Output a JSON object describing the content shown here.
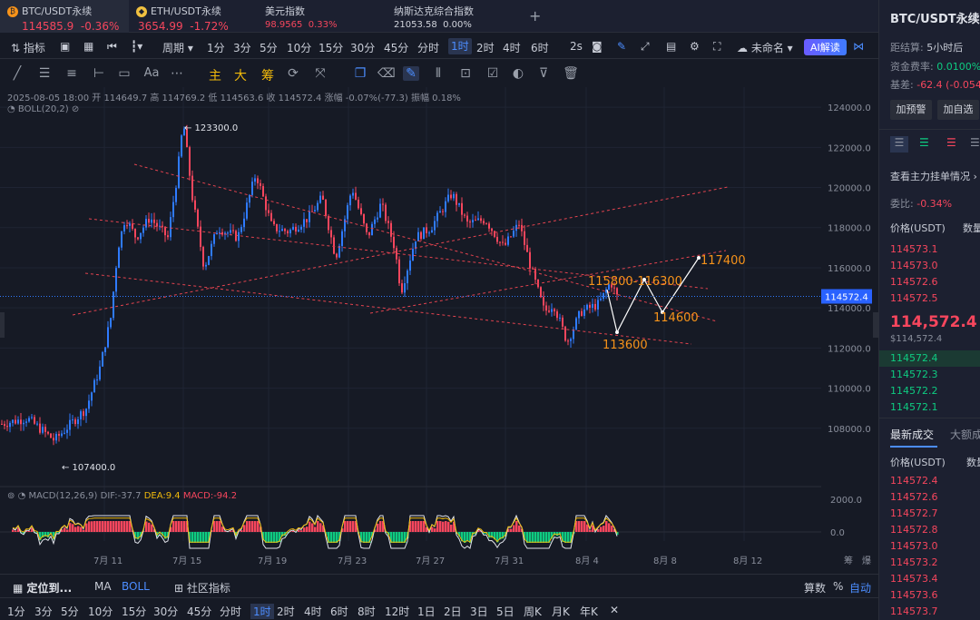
{
  "tabs": [
    {
      "name": "BTC/USDT永续",
      "price": "114585.9",
      "change": "-0.36%",
      "icon": "₿",
      "color": "#f7931a"
    },
    {
      "name": "ETH/USDT永续",
      "price": "3654.99",
      "change": "-1.72%",
      "icon": "◆",
      "color": "#f0c040"
    },
    {
      "name": "美元指数",
      "price": "98.9565",
      "change": "0.33%"
    },
    {
      "name": "纳斯达克综合指数",
      "price": "21053.58",
      "change": "0.00%"
    }
  ],
  "toolbar1": {
    "indicators": "指标",
    "period": "周期",
    "intervals": [
      "1分",
      "3分",
      "5分",
      "10分",
      "15分",
      "30分",
      "45分",
      "分时",
      "1时",
      "2时",
      "4时",
      "6时"
    ],
    "selected": "1时",
    "countdown": "2s",
    "unnamed": "未命名",
    "ai": "AI解读"
  },
  "toolbar2": {
    "zhu": "主",
    "da": "大",
    "chou": "筹"
  },
  "ohlc": "2025-08-05 18:00  开 114649.7  高 114769.2  低 114563.6  收 114572.4  涨幅 -0.07%(-77.3)  振幅 0.18%",
  "boll": "BOLL(20,2)",
  "macd": {
    "label": "MACD(12,26,9)",
    "dif": "DIF:-37.7",
    "dea": "DEA:9.4",
    "macd": "MACD:-94.2"
  },
  "price_axis": [
    "124000.0",
    "122000.0",
    "120000.0",
    "118000.0",
    "116000.0",
    "114000.0",
    "112000.0",
    "110000.0",
    "108000.0"
  ],
  "current_price": "114572.4",
  "macd_axis": [
    "2000.0",
    "0.0"
  ],
  "date_axis": [
    "7月 11",
    "7月 15",
    "7月 19",
    "7月 23",
    "7月 27",
    "7月 31",
    "8月 4",
    "8月 8",
    "8月 12"
  ],
  "axis_right_labels": [
    "筹",
    "爆"
  ],
  "annotations": {
    "high": "123300.0",
    "low": "107400.0",
    "t1": "115800-116300",
    "t2": "117400",
    "t3": "114600",
    "t4": "113600"
  },
  "chart_data": {
    "type": "candlestick",
    "title": "BTC/USDT永续 1时",
    "ylim": [
      106000,
      125000
    ],
    "x": [
      "7月 11",
      "7月 15",
      "7月 19",
      "7月 23",
      "7月 27",
      "7月 31",
      "8月 4"
    ],
    "marked_high": 123300,
    "marked_low": 107400,
    "last_close": 114572.4,
    "targets": [
      113600,
      115800,
      116300,
      114600,
      117400
    ]
  },
  "right": {
    "title": "BTC/USDT永续",
    "settle_label": "距结算:",
    "settle": "5小时后",
    "funding_label": "资金费率:",
    "funding": "0.0100%",
    "basis_label": "基差:",
    "basis": "-62.4 (-0.054",
    "btn_alert": "加预警",
    "btn_fav": "加自选",
    "depth_link": "查看主力挂单情况",
    "ratio_label": "委比:",
    "ratio": "-0.34%",
    "col_price": "价格(USDT)",
    "col_qty": "数量",
    "asks": [
      "114573.1",
      "114573.0",
      "114572.6",
      "114572.5"
    ],
    "mid": "114,572.4",
    "mid_sub": "$114,572.4",
    "bids": [
      "114572.4",
      "114572.3",
      "114572.2",
      "114572.1"
    ],
    "trades_tab": "最新成交",
    "trades_tab2": "大额成",
    "trades": [
      "114572.4",
      "114572.6",
      "114572.7",
      "114572.8",
      "114573.0",
      "114573.2",
      "114573.4",
      "114573.6",
      "114573.7"
    ]
  },
  "bottom1": {
    "locate": "定位到...",
    "ma": "MA",
    "boll": "BOLL",
    "community": "社区指标",
    "arith": "算数",
    "pct": "%",
    "auto": "自动"
  },
  "bottom2": [
    "1分",
    "3分",
    "5分",
    "10分",
    "15分",
    "30分",
    "45分",
    "分时",
    "1时",
    "2时",
    "4时",
    "6时",
    "8时",
    "12时",
    "1日",
    "2日",
    "3日",
    "5日",
    "周K",
    "月K",
    "年K"
  ],
  "bottom2_selected": "1时"
}
